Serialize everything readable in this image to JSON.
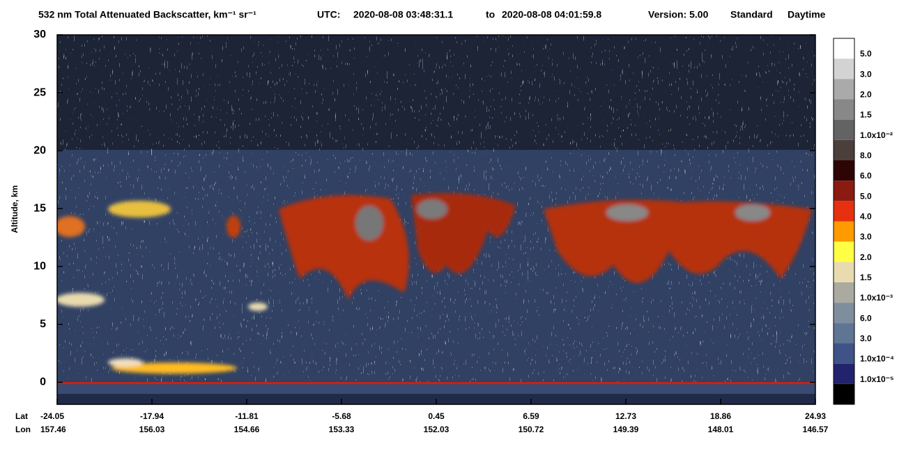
{
  "chart_data": {
    "type": "heatmap",
    "title": "532 nm Total Attenuated Backscatter, km⁻¹ sr⁻¹",
    "utc_label": "UTC:",
    "utc_start": "2020-08-08 03:48:31.1",
    "utc_to": "to",
    "utc_end": "2020-08-08 04:01:59.8",
    "version": "Version: 5.00",
    "product": "Standard",
    "lighting": "Daytime",
    "ylabel": "Altitude, km",
    "ylim": [
      -1.9,
      30
    ],
    "yticks": [
      0,
      5,
      10,
      15,
      20,
      25,
      30
    ],
    "x_row_labels": [
      "Lat",
      "Lon"
    ],
    "lat": [
      -24.05,
      -17.94,
      -11.81,
      -5.68,
      0.45,
      6.59,
      12.73,
      18.86,
      24.93
    ],
    "lon": [
      157.46,
      156.03,
      154.66,
      153.33,
      152.03,
      150.72,
      149.39,
      148.01,
      146.57
    ],
    "colorbar": {
      "colors": [
        "#ffffff",
        "#d3d3d3",
        "#aaaaaa",
        "#888888",
        "#636363",
        "#4b3f3c",
        "#2d0505",
        "#8b1a10",
        "#e63010",
        "#ff9a00",
        "#ffff44",
        "#e9dbaf",
        "#aaaaa0",
        "#7f8e9d",
        "#5f7594",
        "#3f5387",
        "#22226e",
        "#000000"
      ],
      "labels": [
        "5.0",
        "3.0",
        "2.0",
        "1.5",
        "1.0x10⁻²",
        "8.0",
        "6.0",
        "5.0",
        "4.0",
        "3.0",
        "2.0",
        "1.5",
        "1.0x10⁻³",
        "6.0",
        "3.0",
        "1.0x10⁻⁴",
        "1.0x10⁻⁵"
      ]
    }
  }
}
